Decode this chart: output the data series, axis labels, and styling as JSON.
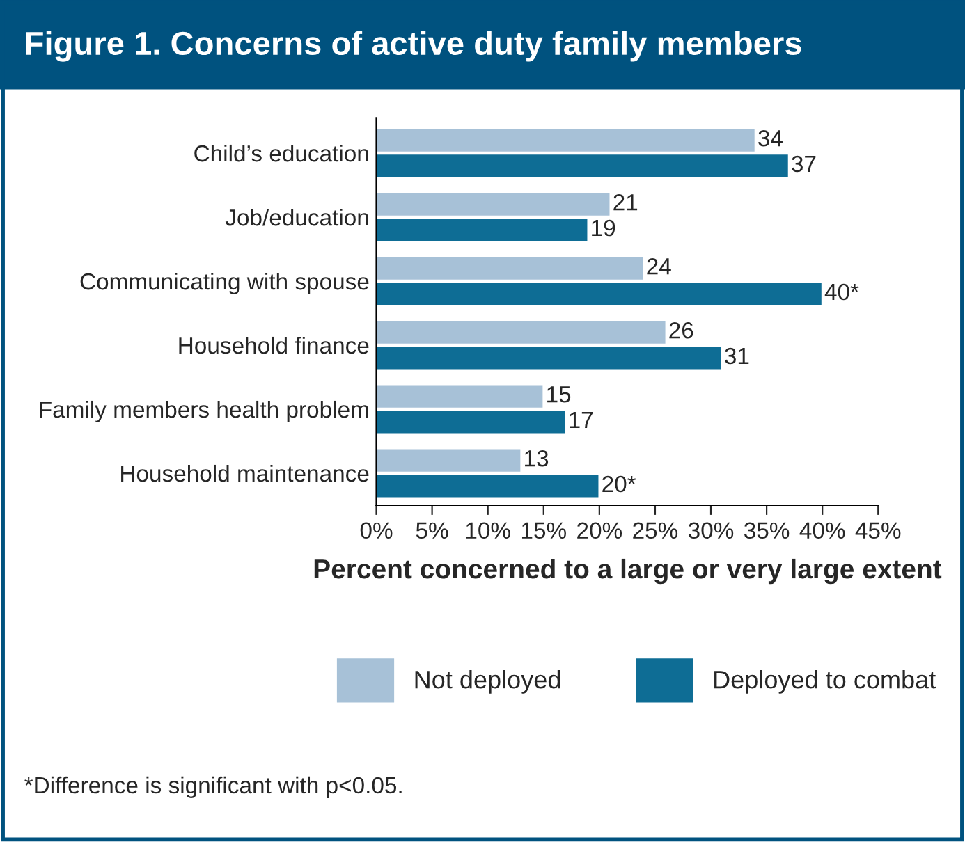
{
  "chart_data": {
    "type": "bar",
    "orientation": "horizontal",
    "title": "Figure 1. Concerns of active duty family members",
    "xlabel": "Percent concerned to a large or very large extent",
    "categories": [
      "Child’s education",
      "Job/education",
      "Communicating with spouse",
      "Household finance",
      "Family members health problem",
      "Household maintenance"
    ],
    "series": [
      {
        "name": "Not deployed",
        "color": "#a7c1d7",
        "values": [
          34,
          21,
          24,
          26,
          15,
          13
        ],
        "value_labels": [
          "34",
          "21",
          "24",
          "26",
          "15",
          "13"
        ]
      },
      {
        "name": "Deployed to combat",
        "color": "#0e6d95",
        "values": [
          37,
          19,
          40,
          31,
          17,
          20
        ],
        "value_labels": [
          "37",
          "19",
          "40*",
          "31",
          "17",
          "20*"
        ]
      }
    ],
    "xlim": [
      0,
      45
    ],
    "xticks": [
      {
        "value": 0,
        "label": "0%"
      },
      {
        "value": 5,
        "label": "5%"
      },
      {
        "value": 10,
        "label": "10%"
      },
      {
        "value": 15,
        "label": "15%"
      },
      {
        "value": 20,
        "label": "20%"
      },
      {
        "value": 25,
        "label": "25%"
      },
      {
        "value": 30,
        "label": "30%"
      },
      {
        "value": 35,
        "label": "35%"
      },
      {
        "value": 40,
        "label": "40%"
      },
      {
        "value": 45,
        "label": "45%"
      }
    ],
    "grid": false,
    "legend": "bottom",
    "annotations": [
      "*Difference is significant with p<0.05."
    ]
  }
}
